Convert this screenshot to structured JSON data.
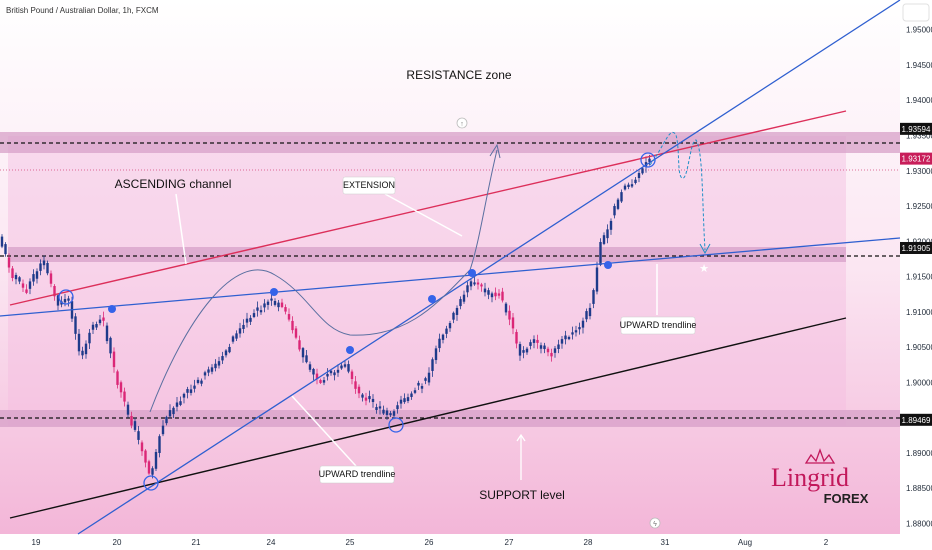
{
  "chart_data": {
    "type": "candlestick",
    "title": "British Pound / Australian Dollar, 1h, FXCM",
    "symbol": "GBPAUD",
    "timeframe": "1h",
    "source": "FXCM",
    "x_tick_labels": [
      "19",
      "20",
      "21",
      "24",
      "25",
      "26",
      "27",
      "28",
      "31",
      "Aug",
      "2"
    ],
    "y_tick_labels": [
      "1.95000",
      "1.94500",
      "1.94000",
      "1.93500",
      "1.93000",
      "1.92500",
      "1.92000",
      "1.91500",
      "1.91000",
      "1.90500",
      "1.90000",
      "1.89500",
      "1.89000",
      "1.88500",
      "1.88000"
    ],
    "ylim": [
      1.8785,
      1.9535
    ],
    "price_labels": [
      {
        "text": "1.93594",
        "value": 1.93594,
        "style": "level"
      },
      {
        "text": "1.93172",
        "value": 1.93172,
        "style": "current"
      },
      {
        "text": "1.91905",
        "value": 1.91905,
        "style": "level"
      },
      {
        "text": "1.89469",
        "value": 1.89469,
        "style": "level"
      }
    ],
    "annotations": {
      "resistance": "RESISTANCE zone",
      "ascending": "ASCENDING channel",
      "extension": "EXTENSION",
      "upward_right": "UPWARD trendline",
      "upward_left": "UPWARD trendline",
      "support": "SUPPORT level"
    },
    "colors": {
      "up": "#1e3a8a",
      "down": "#db2777",
      "upper_channel": "#dc2f5a",
      "trendline": "#2f5fd0",
      "support_line": "#111111",
      "zone": "#d7a0c8",
      "current": "#c81e5a",
      "marker": "#3563e9"
    }
  },
  "logo": {
    "name": "Lingrid",
    "sub": "FOREX",
    "color": "#c2185b"
  }
}
